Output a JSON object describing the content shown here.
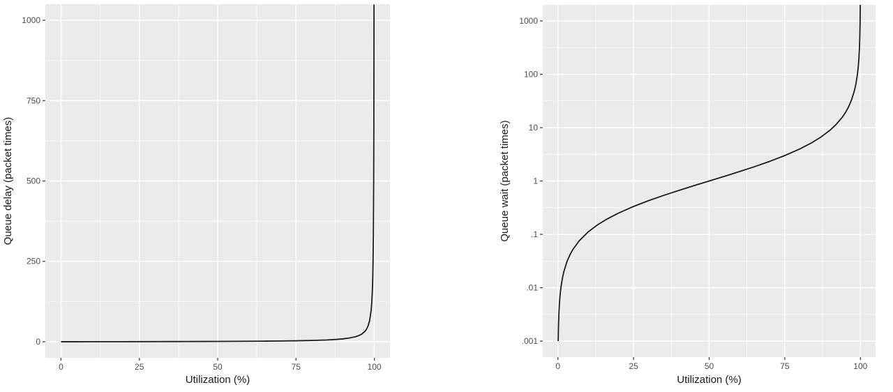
{
  "style": {
    "background": "#ffffff",
    "panel_background": "#ebebeb",
    "grid_color": "#ffffff",
    "line_color": "#1c1c1c",
    "tick_mark_color": "#333333",
    "tick_label_color": "#4d4d4d",
    "axis_title_color": "#1a1a1a"
  },
  "chart_data": [
    {
      "type": "line",
      "title": "",
      "xlabel": "Utilization (%)",
      "ylabel": "Queue delay (packet times)",
      "x_scale": "linear",
      "y_scale": "linear",
      "xlim": [
        0,
        100
      ],
      "ylim": [
        0,
        1000
      ],
      "x_ticks": [
        0,
        25,
        50,
        75,
        100
      ],
      "x_tick_labels": [
        "0",
        "25",
        "50",
        "75",
        "100"
      ],
      "x_minor": [
        12.5,
        37.5,
        62.5,
        87.5
      ],
      "y_ticks": [
        0,
        250,
        500,
        750,
        1000
      ],
      "y_tick_labels": [
        "0",
        "250",
        "500",
        "750",
        "1000"
      ],
      "y_minor": [
        125,
        375,
        625,
        875
      ],
      "grid": true,
      "legend": "none",
      "series": [
        {
          "name": "queue-delay-curve",
          "x": [
            0,
            5,
            10,
            15,
            20,
            25,
            30,
            35,
            40,
            45,
            50,
            55,
            60,
            65,
            70,
            75,
            80,
            85,
            88,
            90,
            92,
            94,
            95,
            96,
            97,
            97.5,
            98,
            98.5,
            99,
            99.2,
            99.4,
            99.5,
            99.6,
            99.7,
            99.8,
            99.85,
            99.9,
            99.905
          ],
          "y": [
            0,
            0.053,
            0.111,
            0.176,
            0.25,
            0.333,
            0.429,
            0.538,
            0.667,
            0.818,
            1,
            1.222,
            1.5,
            1.857,
            2.333,
            3,
            4,
            5.667,
            7.333,
            9,
            11.5,
            15.667,
            19,
            24,
            32.333,
            39,
            49,
            65.667,
            99,
            124,
            165.667,
            199,
            249,
            332.333,
            499,
            665.667,
            999,
            1049
          ]
        }
      ]
    },
    {
      "type": "line",
      "title": "",
      "xlabel": "Utilization (%)",
      "ylabel": "Queue wait (packet times)",
      "x_scale": "linear",
      "y_scale": "log",
      "xlim": [
        0,
        100
      ],
      "ylim": [
        0.001,
        1000
      ],
      "x_ticks": [
        0,
        25,
        50,
        75,
        100
      ],
      "x_tick_labels": [
        "0",
        "25",
        "50",
        "75",
        "100"
      ],
      "x_minor": [
        12.5,
        37.5,
        62.5,
        87.5
      ],
      "y_ticks": [
        0.001,
        0.01,
        0.1,
        1,
        10,
        100,
        1000
      ],
      "y_tick_labels": [
        ".001",
        ".01",
        ".1",
        "1",
        "10",
        "100",
        "1000"
      ],
      "y_minor": [
        0.0031623,
        0.031623,
        0.31623,
        3.1623,
        31.623,
        316.23
      ],
      "grid": true,
      "legend": "none",
      "series": [
        {
          "name": "queue-wait-curve",
          "x": [
            0.1,
            0.15,
            0.2,
            0.3,
            0.5,
            0.7,
            1,
            1.5,
            2,
            3,
            4,
            5,
            7,
            10,
            13,
            16,
            20,
            25,
            30,
            35,
            40,
            45,
            50,
            55,
            60,
            65,
            70,
            75,
            80,
            84,
            87,
            90,
            92,
            94,
            95,
            96,
            97,
            98,
            98.5,
            99,
            99.3,
            99.5,
            99.7,
            99.8,
            99.9,
            99.95
          ],
          "y": [
            0.001,
            0.0015,
            0.002,
            0.003,
            0.005,
            0.00705,
            0.0101,
            0.0152,
            0.0204,
            0.0309,
            0.0417,
            0.0526,
            0.0753,
            0.1111,
            0.1494,
            0.1905,
            0.25,
            0.3333,
            0.4286,
            0.5385,
            0.6667,
            0.8182,
            1,
            1.2222,
            1.5,
            1.8571,
            2.3333,
            3,
            4,
            5.25,
            6.6923,
            9,
            11.5,
            15.667,
            19,
            24,
            32.333,
            49,
            65.667,
            99,
            141.857,
            199,
            332.333,
            499,
            999,
            1999
          ]
        }
      ]
    }
  ]
}
